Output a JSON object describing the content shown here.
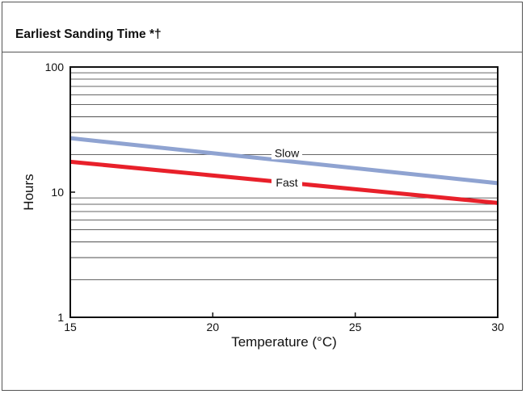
{
  "chart_data": {
    "type": "line",
    "title": "Earliest Sanding Time *†",
    "xlabel": "Temperature (°C)",
    "ylabel": "Hours",
    "xlim": [
      15,
      30
    ],
    "ylim": [
      1,
      100
    ],
    "yscale": "log",
    "x_ticks": [
      "15",
      "20",
      "25",
      "30"
    ],
    "y_ticks": [
      "1",
      "10",
      "100"
    ],
    "grid": "horizontal minor log gridlines",
    "series": [
      {
        "name": "Slow",
        "color": "#8fa3d1",
        "x": [
          15,
          30
        ],
        "y": [
          27,
          11.8
        ]
      },
      {
        "name": "Fast",
        "color": "#e8202a",
        "x": [
          15,
          30
        ],
        "y": [
          17.5,
          8.2
        ]
      }
    ],
    "annotations": [
      {
        "text": "Slow",
        "series": "Slow",
        "x": 22.6
      },
      {
        "text": "Fast",
        "series": "Fast",
        "x": 22.6
      }
    ]
  }
}
